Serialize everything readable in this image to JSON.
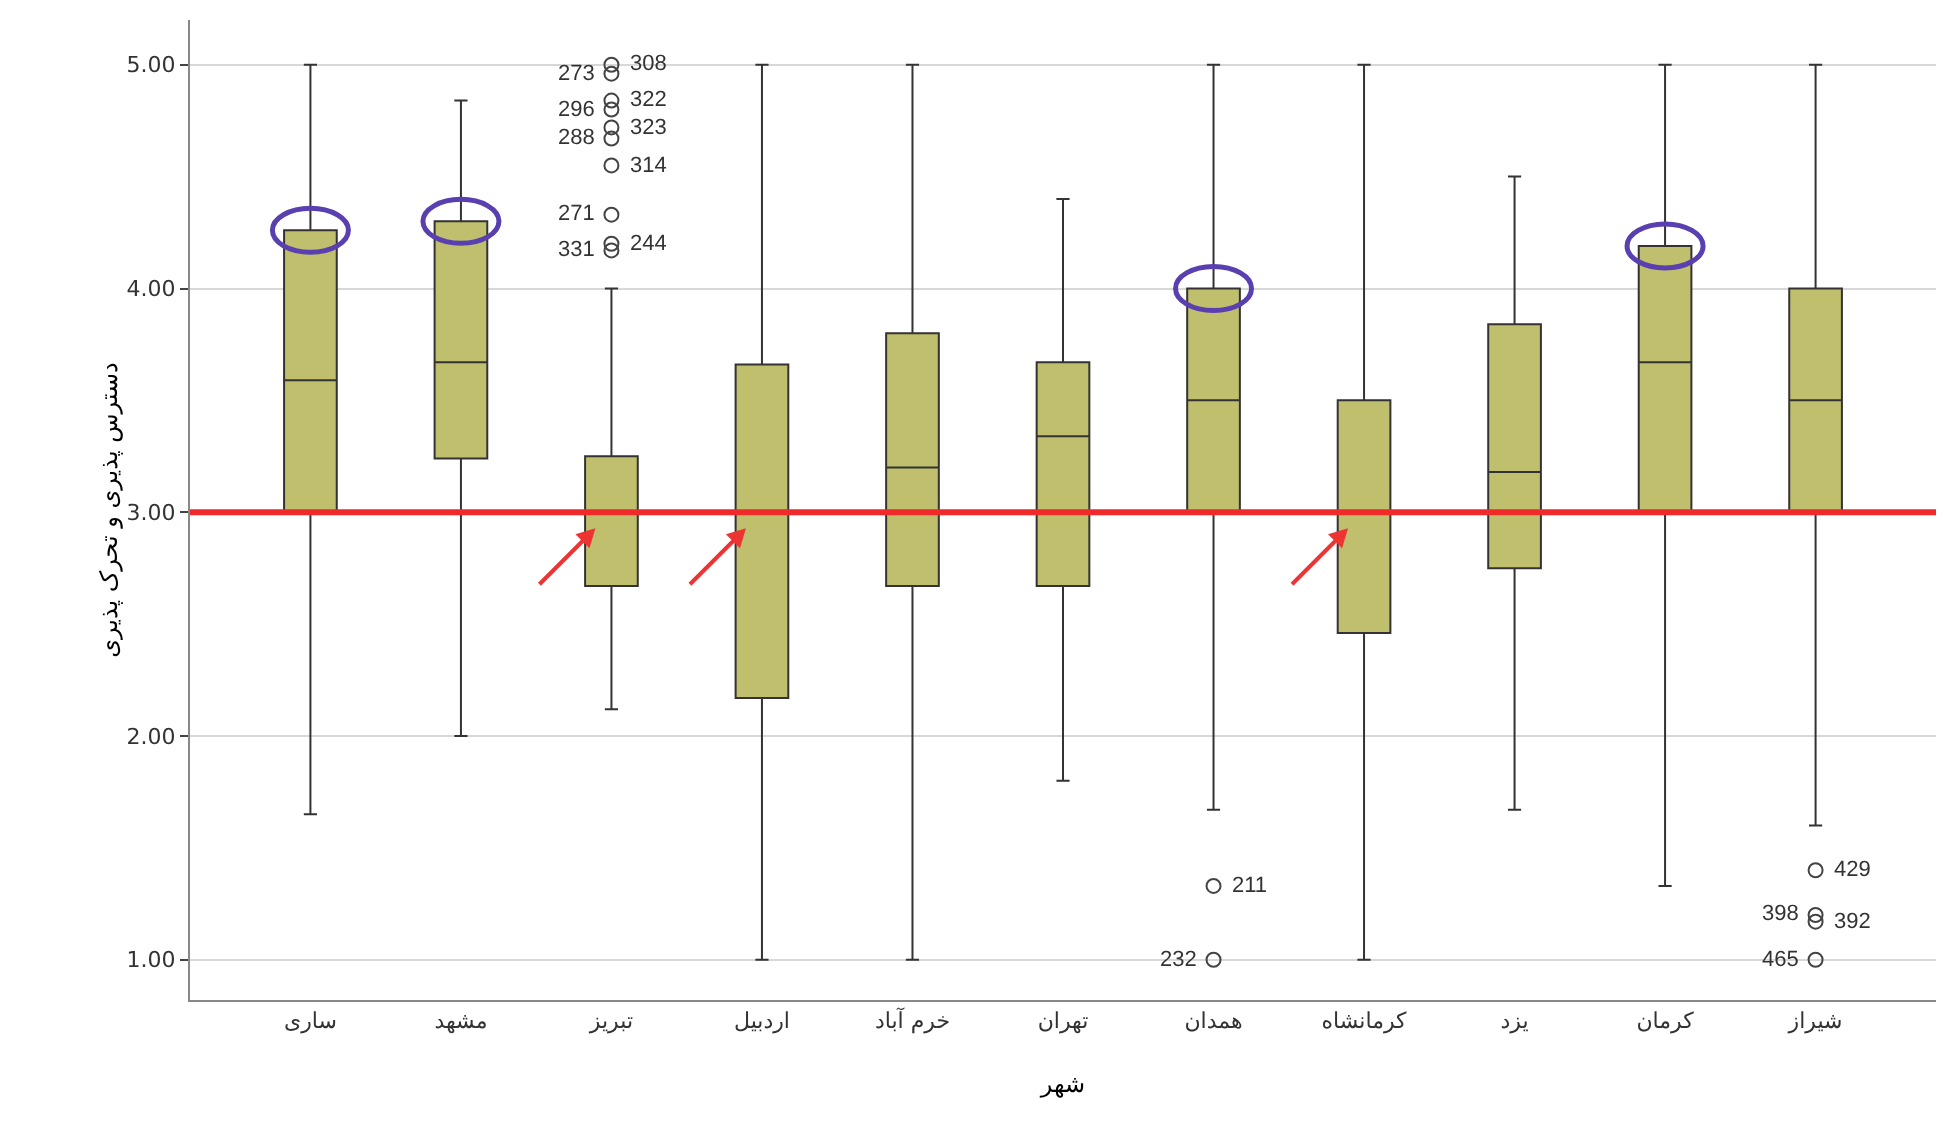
{
  "chart_data": {
    "type": "box",
    "xlabel": "شهر",
    "ylabel": "دسترس پذیری و تحرک پذیری",
    "categories": [
      "ساری",
      "مشهد",
      "تبریز",
      "اردبیل",
      "خرم آباد",
      "تهران",
      "همدان",
      "کرمانشاه",
      "یزد",
      "کرمان",
      "شیراز"
    ],
    "series": [
      {
        "color": "#bfbf6e",
        "boxes": [
          {
            "low": 1.65,
            "q1": 3.0,
            "median": 3.59,
            "q3": 4.26,
            "high": 5.0
          },
          {
            "low": 2.0,
            "q1": 3.24,
            "median": 3.67,
            "q3": 4.3,
            "high": 4.84
          },
          {
            "low": 2.12,
            "q1": 2.67,
            "median": 3.0,
            "q3": 3.25,
            "high": 4.0,
            "outliers": [
              5.0,
              4.96,
              4.84,
              4.8,
              4.72,
              4.67,
              4.55,
              4.33,
              4.2,
              4.17
            ]
          },
          {
            "low": 1.0,
            "q1": 2.17,
            "median": 3.0,
            "q3": 3.66,
            "high": 5.0
          },
          {
            "low": 1.0,
            "q1": 2.67,
            "median": 3.2,
            "q3": 3.8,
            "high": 5.0
          },
          {
            "low": 1.8,
            "q1": 2.67,
            "median": 3.34,
            "q3": 3.67,
            "high": 4.4
          },
          {
            "low": 1.67,
            "q1": 3.0,
            "median": 3.5,
            "q3": 4.0,
            "high": 5.0,
            "outliers": [
              1.33,
              1.0
            ]
          },
          {
            "low": 1.0,
            "q1": 2.46,
            "median": 3.0,
            "q3": 3.5,
            "high": 5.0
          },
          {
            "low": 1.67,
            "q1": 2.75,
            "median": 3.18,
            "q3": 3.84,
            "high": 4.5
          },
          {
            "low": 1.33,
            "q1": 3.0,
            "median": 3.67,
            "q3": 4.19,
            "high": 5.0
          },
          {
            "low": 1.6,
            "q1": 3.0,
            "median": 3.5,
            "q3": 4.0,
            "high": 5.0,
            "outliers": [
              1.4,
              1.2,
              1.17,
              1.0
            ]
          }
        ]
      }
    ],
    "ylim": [
      0.82,
      5.2
    ],
    "yticks": [
      {
        "value": 1,
        "label": "1.00"
      },
      {
        "value": 2,
        "label": "2.00"
      },
      {
        "value": 3,
        "label": "3.00"
      },
      {
        "value": 4,
        "label": "4.00"
      },
      {
        "value": 5,
        "label": "5.00"
      }
    ],
    "grid": "y",
    "marker": "circle",
    "ref_lines": [
      {
        "axis": "y",
        "value": 3.0,
        "color": "#ee2a2a"
      }
    ],
    "annotations": [
      "308",
      "273",
      "322",
      "296",
      "323",
      "288",
      "314",
      "271",
      "244",
      "331",
      "211",
      "232",
      "429",
      "398",
      "392",
      "465"
    ]
  }
}
